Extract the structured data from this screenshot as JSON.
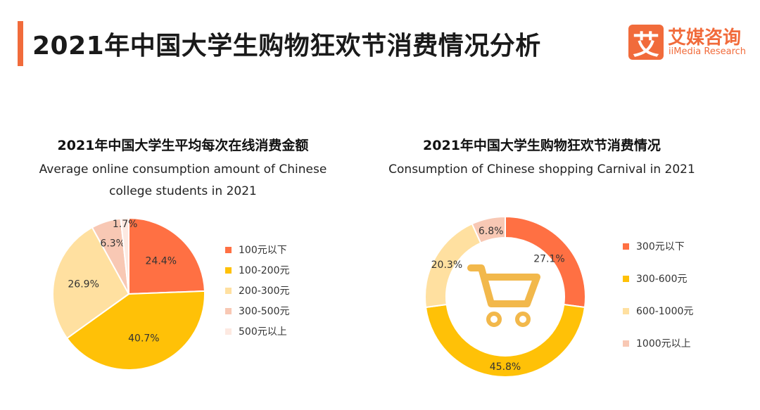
{
  "header": {
    "title": "2021年中国大学生购物狂欢节消费情况分析",
    "accent_color": "#f16b3b"
  },
  "logo": {
    "mark": "艾",
    "name_cn": "艾媒咨询",
    "name_en": "iiMedia Research"
  },
  "chart_data": [
    {
      "type": "pie",
      "title_cn": "2021年中国大学生平均每次在线消费金额",
      "title_en": "Average online consumption amount of Chinese college students in 2021",
      "categories": [
        "100元以下",
        "100-200元",
        "200-300元",
        "300-500元",
        "500元以上"
      ],
      "values": [
        24.4,
        40.7,
        26.9,
        6.3,
        1.7
      ],
      "labels": [
        "24.4%",
        "40.7%",
        "26.9%",
        "6.3%",
        "1.7%"
      ],
      "colors": [
        "#ff7043",
        "#ffc107",
        "#ffe0a0",
        "#f8c8b4",
        "#fde9e1"
      ],
      "legend_position": "right"
    },
    {
      "type": "donut",
      "title_cn": "2021年中国大学生购物狂欢节消费情况",
      "title_en": "Consumption of Chinese shopping Carnival in 2021",
      "categories": [
        "300元以下",
        "300-600元",
        "600-1000元",
        "1000元以上"
      ],
      "values": [
        27.1,
        45.8,
        20.3,
        6.8
      ],
      "labels": [
        "27.1%",
        "45.8%",
        "20.3%",
        "6.8%"
      ],
      "colors": [
        "#ff7043",
        "#ffc107",
        "#ffe0a0",
        "#f8c8b4"
      ],
      "center_icon": "shopping-cart-icon",
      "center_icon_color": "#f2b84b",
      "legend_position": "right"
    }
  ]
}
